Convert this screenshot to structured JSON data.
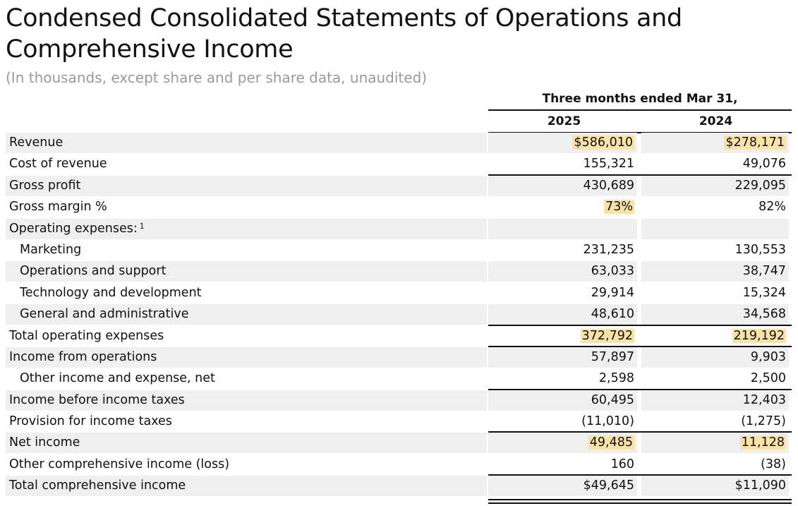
{
  "title": "Condensed Consolidated Statements of Operations and Comprehensive Income",
  "subtitle": "(In thousands, except share and per share data, unaudited)",
  "period_header": "Three months ended Mar 31,",
  "years": [
    "2025",
    "2024"
  ],
  "highlight_color": "#f8e2a6",
  "row_shade_color": "#efefef",
  "rows": [
    {
      "label": "Revenue",
      "v2025": "$586,010",
      "v2024": "$278,171"
    },
    {
      "label": "Cost of revenue",
      "v2025": "155,321",
      "v2024": "49,076"
    },
    {
      "label": "Gross profit",
      "v2025": "430,689",
      "v2024": "229,095"
    },
    {
      "label": "Gross margin %",
      "v2025": "73%",
      "v2024": "82%"
    },
    {
      "label": "Operating expenses:",
      "footnote": "1",
      "v2025": "",
      "v2024": ""
    },
    {
      "label": "Marketing",
      "v2025": "231,235",
      "v2024": "130,553"
    },
    {
      "label": "Operations and support",
      "v2025": "63,033",
      "v2024": "38,747"
    },
    {
      "label": "Technology and development",
      "v2025": "29,914",
      "v2024": "15,324"
    },
    {
      "label": "General and administrative",
      "v2025": "48,610",
      "v2024": "34,568"
    },
    {
      "label": "Total operating expenses",
      "v2025": "372,792",
      "v2024": "219,192"
    },
    {
      "label": "Income from operations",
      "v2025": "57,897",
      "v2024": "9,903"
    },
    {
      "label": "Other income and expense, net",
      "v2025": "2,598",
      "v2024": "2,500"
    },
    {
      "label": "Income before income taxes",
      "v2025": "60,495",
      "v2024": "12,403"
    },
    {
      "label": "Provision for income taxes",
      "v2025": "(11,010)",
      "v2024": "(1,275)"
    },
    {
      "label": "Net income",
      "v2025": "49,485",
      "v2024": "11,128"
    },
    {
      "label": "Other comprehensive income (loss)",
      "v2025": "160",
      "v2024": "(38)"
    },
    {
      "label": "Total comprehensive income",
      "v2025": "$49,645",
      "v2024": "$11,090"
    }
  ]
}
